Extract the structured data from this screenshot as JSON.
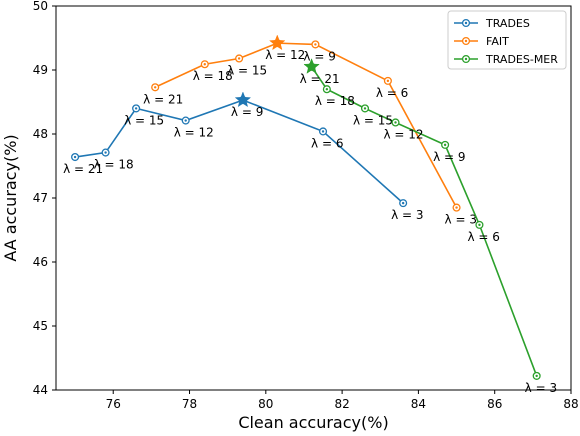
{
  "chart_data": {
    "type": "line",
    "xlabel": "Clean accuracy(%)",
    "ylabel": "AA accuracy(%)",
    "xlim": [
      74.5,
      88
    ],
    "ylim": [
      44,
      50
    ],
    "xticks": [
      76,
      78,
      80,
      82,
      84,
      86,
      88
    ],
    "yticks": [
      44,
      45,
      46,
      47,
      48,
      49,
      50
    ],
    "legend_position": "top-right",
    "grid": false,
    "series": [
      {
        "name": "TRADES",
        "color": "#1f77b4",
        "points": [
          {
            "x": 75.0,
            "y": 47.64,
            "label": "λ = 21"
          },
          {
            "x": 75.8,
            "y": 47.71,
            "label": "λ = 18"
          },
          {
            "x": 76.6,
            "y": 48.4,
            "label": "λ = 15"
          },
          {
            "x": 77.9,
            "y": 48.21,
            "label": "λ = 12"
          },
          {
            "x": 79.4,
            "y": 48.53,
            "label": "λ = 9"
          },
          {
            "x": 81.5,
            "y": 48.04,
            "label": "λ = 6"
          },
          {
            "x": 83.6,
            "y": 46.92,
            "label": "λ = 3"
          }
        ],
        "star": {
          "x": 79.4,
          "y": 48.53
        }
      },
      {
        "name": "FAIT",
        "color": "#ff7f0e",
        "points": [
          {
            "x": 77.1,
            "y": 48.73,
            "label": "λ = 21"
          },
          {
            "x": 78.4,
            "y": 49.09,
            "label": "λ = 18"
          },
          {
            "x": 79.3,
            "y": 49.18,
            "label": "λ = 15"
          },
          {
            "x": 80.3,
            "y": 49.42,
            "label": "λ = 12"
          },
          {
            "x": 81.3,
            "y": 49.4,
            "label": "λ = 9"
          },
          {
            "x": 83.2,
            "y": 48.83,
            "label": "λ = 6"
          },
          {
            "x": 85.0,
            "y": 46.85,
            "label": "λ = 3"
          }
        ],
        "star": {
          "x": 80.3,
          "y": 49.42
        }
      },
      {
        "name": "TRADES-MER",
        "color": "#2ca02c",
        "points": [
          {
            "x": 81.2,
            "y": 49.05,
            "label": "λ = 21"
          },
          {
            "x": 81.6,
            "y": 48.7,
            "label": "λ = 18"
          },
          {
            "x": 82.6,
            "y": 48.4,
            "label": "λ = 15"
          },
          {
            "x": 83.4,
            "y": 48.18,
            "label": "λ = 12"
          },
          {
            "x": 84.7,
            "y": 47.83,
            "label": "λ = 9"
          },
          {
            "x": 85.6,
            "y": 46.58,
            "label": "λ = 6"
          },
          {
            "x": 87.1,
            "y": 44.22,
            "label": "λ = 3"
          }
        ],
        "star": {
          "x": 81.2,
          "y": 49.05
        }
      }
    ]
  }
}
